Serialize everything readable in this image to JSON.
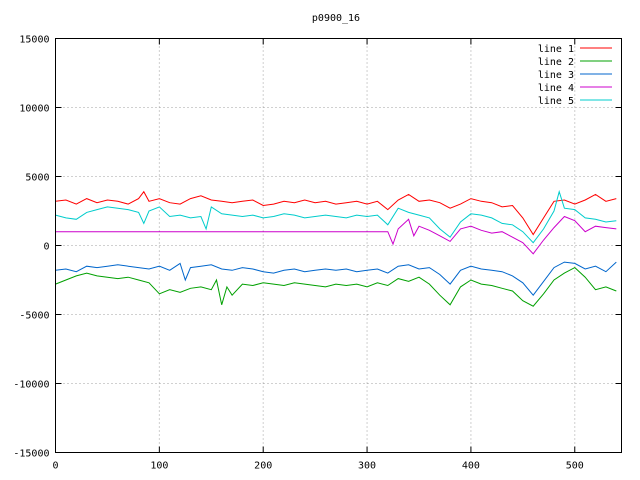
{
  "chart_data": {
    "type": "line",
    "title": "p0900_16",
    "xlabel": "",
    "ylabel": "",
    "xlim": [
      0,
      545
    ],
    "ylim": [
      -15000,
      15000
    ],
    "xticks": [
      0,
      100,
      200,
      300,
      400,
      500
    ],
    "yticks": [
      -15000,
      -10000,
      -5000,
      0,
      5000,
      10000,
      15000
    ],
    "x_tick_labels": [
      "0",
      "100",
      "200",
      "300",
      "400",
      "500"
    ],
    "y_tick_labels": [
      "-15000",
      "-10000",
      "-5000",
      "0",
      "5000",
      "10000",
      "15000"
    ],
    "grid": true,
    "legend_position": "top-right",
    "series": [
      {
        "name": "line 1",
        "color": "#ff0000",
        "x": [
          0,
          10,
          20,
          30,
          40,
          50,
          60,
          70,
          80,
          85,
          90,
          100,
          110,
          120,
          130,
          140,
          150,
          160,
          170,
          180,
          190,
          200,
          210,
          220,
          230,
          240,
          250,
          260,
          270,
          280,
          290,
          300,
          310,
          320,
          330,
          340,
          350,
          360,
          370,
          380,
          390,
          400,
          410,
          420,
          430,
          440,
          450,
          460,
          470,
          480,
          490,
          500,
          510,
          520,
          530,
          540
        ],
        "y": [
          3200,
          3300,
          3000,
          3400,
          3100,
          3300,
          3200,
          3000,
          3400,
          3900,
          3200,
          3400,
          3100,
          3000,
          3400,
          3600,
          3300,
          3200,
          3100,
          3200,
          3300,
          2900,
          3000,
          3200,
          3100,
          3300,
          3100,
          3200,
          3000,
          3100,
          3200,
          3000,
          3200,
          2600,
          3300,
          3700,
          3200,
          3300,
          3100,
          2700,
          3000,
          3400,
          3200,
          3100,
          2800,
          2900,
          2000,
          800,
          2000,
          3200,
          3300,
          3000,
          3300,
          3700,
          3200,
          3400
        ]
      },
      {
        "name": "line 2",
        "color": "#00a000",
        "x": [
          0,
          10,
          20,
          30,
          40,
          50,
          60,
          70,
          80,
          90,
          100,
          110,
          120,
          130,
          140,
          150,
          155,
          160,
          165,
          170,
          180,
          190,
          200,
          210,
          220,
          230,
          240,
          250,
          260,
          270,
          280,
          290,
          300,
          310,
          320,
          330,
          340,
          350,
          360,
          370,
          380,
          390,
          400,
          410,
          420,
          430,
          440,
          450,
          460,
          470,
          480,
          490,
          500,
          510,
          520,
          530,
          540
        ],
        "y": [
          -2800,
          -2500,
          -2200,
          -2000,
          -2200,
          -2300,
          -2400,
          -2300,
          -2500,
          -2700,
          -3500,
          -3200,
          -3400,
          -3100,
          -3000,
          -3200,
          -2500,
          -4300,
          -3000,
          -3600,
          -2800,
          -2900,
          -2700,
          -2800,
          -2900,
          -2700,
          -2800,
          -2900,
          -3000,
          -2800,
          -2900,
          -2800,
          -3000,
          -2700,
          -2900,
          -2400,
          -2600,
          -2300,
          -2800,
          -3600,
          -4300,
          -3000,
          -2500,
          -2800,
          -2900,
          -3100,
          -3300,
          -4000,
          -4400,
          -3500,
          -2500,
          -2000,
          -1600,
          -2300,
          -3200,
          -3000,
          -3300
        ]
      },
      {
        "name": "line 3",
        "color": "#0066cc",
        "x": [
          0,
          10,
          20,
          30,
          40,
          50,
          60,
          70,
          80,
          90,
          100,
          110,
          120,
          125,
          130,
          140,
          150,
          160,
          170,
          180,
          190,
          200,
          210,
          220,
          230,
          240,
          250,
          260,
          270,
          280,
          290,
          300,
          310,
          320,
          330,
          340,
          350,
          360,
          370,
          380,
          390,
          400,
          410,
          420,
          430,
          440,
          450,
          460,
          470,
          480,
          490,
          500,
          510,
          520,
          530,
          540
        ],
        "y": [
          -1800,
          -1700,
          -1900,
          -1500,
          -1600,
          -1500,
          -1400,
          -1500,
          -1600,
          -1700,
          -1500,
          -1800,
          -1300,
          -2500,
          -1600,
          -1500,
          -1400,
          -1700,
          -1800,
          -1600,
          -1700,
          -1900,
          -2000,
          -1800,
          -1700,
          -1900,
          -1800,
          -1700,
          -1800,
          -1700,
          -1900,
          -1800,
          -1700,
          -2000,
          -1500,
          -1400,
          -1700,
          -1600,
          -2100,
          -2800,
          -1800,
          -1500,
          -1700,
          -1800,
          -1900,
          -2200,
          -2700,
          -3600,
          -2600,
          -1600,
          -1200,
          -1300,
          -1700,
          -1500,
          -1900,
          -1200
        ]
      },
      {
        "name": "line 4",
        "color": "#cc00cc",
        "x": [
          0,
          310,
          320,
          325,
          330,
          340,
          345,
          350,
          360,
          370,
          380,
          390,
          400,
          410,
          420,
          430,
          440,
          450,
          460,
          470,
          480,
          490,
          500,
          510,
          520,
          530,
          540
        ],
        "y": [
          1000,
          1000,
          1000,
          100,
          1200,
          1900,
          700,
          1400,
          1100,
          700,
          300,
          1200,
          1400,
          1100,
          900,
          1000,
          600,
          200,
          -600,
          400,
          1300,
          2100,
          1800,
          1000,
          1400,
          1300,
          1200
        ]
      },
      {
        "name": "line 5",
        "color": "#00cccc",
        "x": [
          0,
          10,
          20,
          30,
          40,
          50,
          60,
          70,
          80,
          85,
          90,
          100,
          110,
          120,
          130,
          140,
          145,
          150,
          160,
          170,
          180,
          190,
          200,
          210,
          220,
          230,
          240,
          250,
          260,
          270,
          280,
          290,
          300,
          310,
          320,
          330,
          340,
          350,
          360,
          370,
          380,
          390,
          400,
          410,
          420,
          430,
          440,
          450,
          460,
          470,
          480,
          485,
          490,
          500,
          510,
          520,
          530,
          540
        ],
        "y": [
          2200,
          2000,
          1900,
          2400,
          2600,
          2800,
          2700,
          2600,
          2400,
          1600,
          2500,
          2800,
          2100,
          2200,
          2000,
          2100,
          1200,
          2800,
          2300,
          2200,
          2100,
          2200,
          2000,
          2100,
          2300,
          2200,
          2000,
          2100,
          2200,
          2100,
          2000,
          2200,
          2100,
          2200,
          1500,
          2700,
          2400,
          2200,
          2000,
          1200,
          600,
          1700,
          2300,
          2200,
          2000,
          1600,
          1500,
          1000,
          200,
          1200,
          2500,
          3900,
          2700,
          2600,
          2000,
          1900,
          1700,
          1800
        ]
      }
    ]
  }
}
